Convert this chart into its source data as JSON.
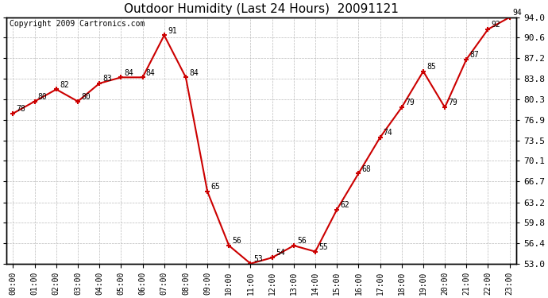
{
  "title": "Outdoor Humidity (Last 24 Hours)  20091121",
  "copyright": "Copyright 2009 Cartronics.com",
  "x_labels": [
    "00:00",
    "01:00",
    "02:00",
    "03:00",
    "04:00",
    "05:00",
    "06:00",
    "07:00",
    "08:00",
    "09:00",
    "10:00",
    "11:00",
    "12:00",
    "13:00",
    "14:00",
    "15:00",
    "16:00",
    "17:00",
    "18:00",
    "19:00",
    "20:00",
    "21:00",
    "22:00",
    "23:00"
  ],
  "hours": [
    0,
    1,
    2,
    3,
    4,
    5,
    6,
    7,
    8,
    9,
    10,
    11,
    12,
    13,
    14,
    15,
    16,
    17,
    18,
    19,
    20,
    21,
    22,
    23
  ],
  "values": [
    78,
    80,
    82,
    80,
    83,
    84,
    84,
    91,
    84,
    65,
    56,
    53,
    54,
    56,
    55,
    62,
    68,
    74,
    79,
    85,
    79,
    87,
    92,
    94
  ],
  "ylim_min": 53.0,
  "ylim_max": 94.0,
  "yticks": [
    53.0,
    56.4,
    59.8,
    63.2,
    66.7,
    70.1,
    73.5,
    76.9,
    80.3,
    83.8,
    87.2,
    90.6,
    94.0
  ],
  "line_color": "#cc0000",
  "marker_color": "#cc0000",
  "bg_color": "#ffffff",
  "plot_bg_color": "#ffffff",
  "grid_color": "#bbbbbb",
  "title_fontsize": 11,
  "annotation_fontsize": 7,
  "copyright_fontsize": 7
}
